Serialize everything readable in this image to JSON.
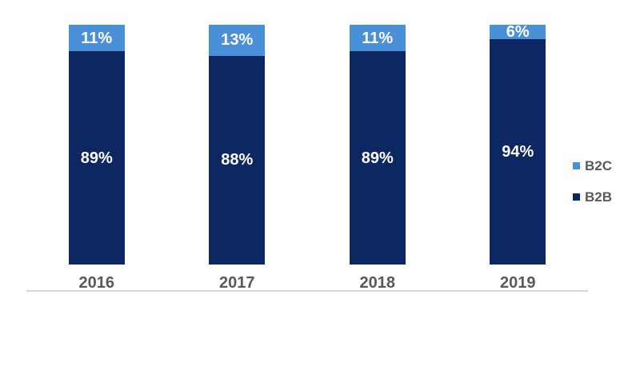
{
  "chart_data": {
    "type": "bar",
    "subtype": "stacked-100-percent",
    "title": "",
    "xlabel": "",
    "ylabel": "",
    "grid": false,
    "legend_position": "right",
    "categories": [
      "2016",
      "2017",
      "2018",
      "2019"
    ],
    "series": [
      {
        "name": "B2C",
        "color": "#4a90d9",
        "values": [
          11,
          13,
          11,
          6
        ],
        "labels": [
          "11%",
          "13%",
          "11%",
          "6%"
        ]
      },
      {
        "name": "B2B",
        "color": "#0d2763",
        "values": [
          89,
          88,
          89,
          94
        ],
        "labels": [
          "89%",
          "88%",
          "89%",
          "94%"
        ]
      }
    ],
    "colors": {
      "axis_line": "#d9d9d9",
      "category_label": "#595959",
      "legend_label": "#595959",
      "data_label": "#ffffff",
      "background": "#ffffff"
    }
  }
}
